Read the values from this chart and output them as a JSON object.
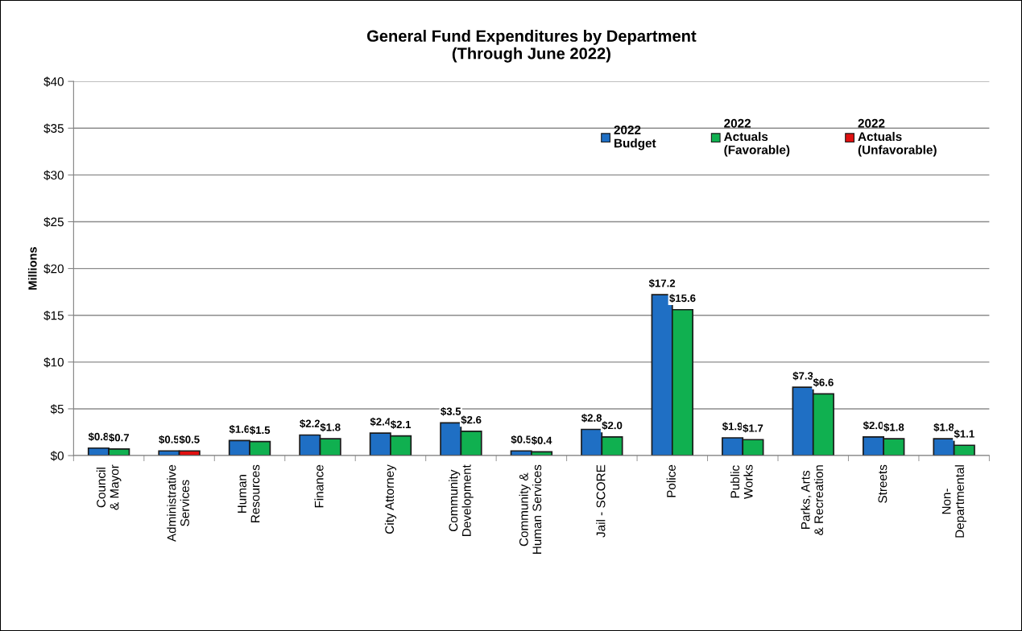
{
  "chart_data": {
    "type": "bar",
    "title": "General Fund Expenditures by Department\n(Through June 2022)",
    "ylabel": "Millions",
    "categories": [
      "Council\n& Mayor",
      "Administrative\nServices",
      "Human\nResources",
      "Finance",
      "City Attorney",
      "Community\nDevelopment",
      "Community &\nHuman Services",
      "Jail - SCORE",
      "Police",
      "Public\nWorks",
      "Parks, Arts\n& Recreation",
      "Streets",
      "Non-\nDepartmental"
    ],
    "series": [
      {
        "name": "2022\nBudget",
        "color": "#1f6fc4",
        "values": [
          0.8,
          0.5,
          1.6,
          2.2,
          2.4,
          3.5,
          0.5,
          2.8,
          17.2,
          1.9,
          7.3,
          2.0,
          1.8
        ],
        "value_labels": [
          "$0.8",
          "$0.5",
          "$1.6",
          "$2.2",
          "$2.4",
          "$3.5",
          "$0.5",
          "$2.8",
          "$17.2",
          "$1.9",
          "$7.3",
          "$2.0",
          "$1.8"
        ]
      },
      {
        "name": "2022\nActuals\n(Favorable)",
        "color": "#10b050",
        "values": [
          0.7,
          null,
          1.5,
          1.8,
          2.1,
          2.6,
          0.4,
          2.0,
          15.6,
          1.7,
          6.6,
          1.8,
          1.1
        ],
        "value_labels": [
          "$0.7",
          null,
          "$1.5",
          "$1.8",
          "$2.1",
          "$2.6",
          "$0.4",
          "$2.0",
          "$15.6",
          "$1.7",
          "$6.6",
          "$1.8",
          "$1.1"
        ]
      },
      {
        "name": "2022\nActuals\n(Unfavorable)",
        "color": "#e01010",
        "values": [
          null,
          0.5,
          null,
          null,
          null,
          null,
          null,
          null,
          null,
          null,
          null,
          null,
          null
        ],
        "value_labels": [
          null,
          "$0.5",
          null,
          null,
          null,
          null,
          null,
          null,
          null,
          null,
          null,
          null,
          null
        ]
      }
    ],
    "ylim": [
      0,
      40
    ],
    "yticks": [
      {
        "value": 0,
        "label": "$0"
      },
      {
        "value": 5,
        "label": "$5"
      },
      {
        "value": 10,
        "label": "$10"
      },
      {
        "value": 15,
        "label": "$15"
      },
      {
        "value": 20,
        "label": "$20"
      },
      {
        "value": 25,
        "label": "$25"
      },
      {
        "value": 30,
        "label": "$30"
      },
      {
        "value": 35,
        "label": "$35"
      },
      {
        "value": 40,
        "label": "$40"
      }
    ],
    "grid": "y",
    "legend": "top right"
  }
}
